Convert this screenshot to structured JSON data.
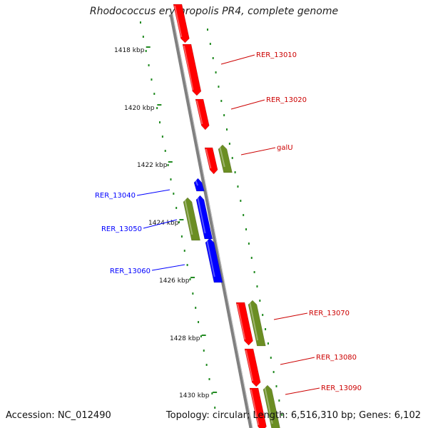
{
  "title": "Rhodococcus erythropolis PR4, complete genome",
  "accession": "Accession: NC_012490",
  "summary": "Topology: circular; Length: 6,516,310 bp; Genes: 6,102",
  "colors": {
    "forward_cds": "#ff0000",
    "reverse_cds": "#0000ff",
    "rna": "#6b8e23",
    "backbone": "#808080",
    "dots": "#228b22"
  },
  "ticks": [
    {
      "label": "1418 kbp"
    },
    {
      "label": "1420 kbp"
    },
    {
      "label": "1422 kbp"
    },
    {
      "label": "1424 kbp"
    },
    {
      "label": "1426 kbp"
    },
    {
      "label": "1428 kbp"
    },
    {
      "label": "1430 kbp"
    }
  ],
  "genes": [
    {
      "label": "RER_13010",
      "strand": "forward"
    },
    {
      "label": "RER_13020",
      "strand": "forward"
    },
    {
      "label": "galU",
      "strand": "forward"
    },
    {
      "label": "RER_13040",
      "strand": "reverse"
    },
    {
      "label": "RER_13050",
      "strand": "reverse"
    },
    {
      "label": "RER_13060",
      "strand": "reverse"
    },
    {
      "label": "RER_13070",
      "strand": "forward"
    },
    {
      "label": "RER_13080",
      "strand": "forward"
    },
    {
      "label": "RER_13090",
      "strand": "forward"
    }
  ]
}
